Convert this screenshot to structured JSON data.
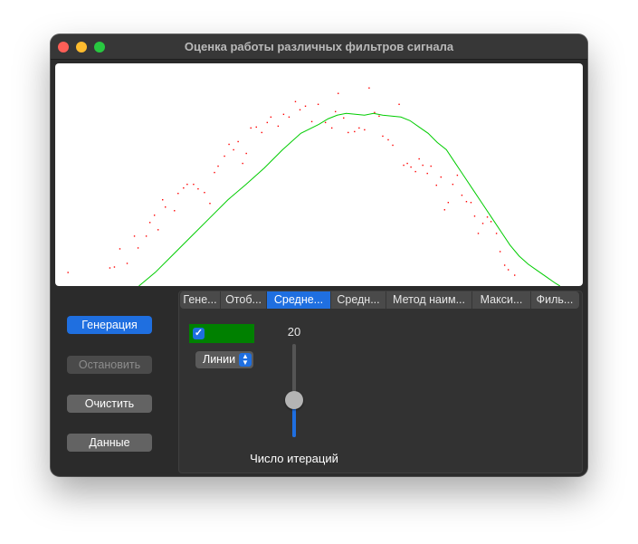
{
  "window": {
    "title": "Оценка работы различных фильтров сигнала"
  },
  "chart_data": {
    "type": "scatter",
    "title": "",
    "xlabel": "",
    "ylabel": "",
    "xlim": [
      0,
      580
    ],
    "ylim": [
      0,
      245
    ],
    "grid": false,
    "series": [
      {
        "kind": "scatter",
        "color": "#ff0000",
        "points": [
          [
            14,
            15
          ],
          [
            60,
            20
          ],
          [
            65,
            21
          ],
          [
            71,
            41
          ],
          [
            79,
            25
          ],
          [
            87,
            55
          ],
          [
            91,
            42
          ],
          [
            100,
            55
          ],
          [
            104,
            70
          ],
          [
            109,
            78
          ],
          [
            113,
            62
          ],
          [
            118,
            95
          ],
          [
            121,
            87
          ],
          [
            131,
            83
          ],
          [
            135,
            102
          ],
          [
            141,
            108
          ],
          [
            145,
            112
          ],
          [
            152,
            112
          ],
          [
            157,
            107
          ],
          [
            164,
            103
          ],
          [
            170,
            91
          ],
          [
            175,
            125
          ],
          [
            179,
            132
          ],
          [
            186,
            143
          ],
          [
            191,
            156
          ],
          [
            196,
            150
          ],
          [
            201,
            159
          ],
          [
            206,
            135
          ],
          [
            210,
            146
          ],
          [
            215,
            174
          ],
          [
            221,
            175
          ],
          [
            227,
            169
          ],
          [
            233,
            180
          ],
          [
            237,
            186
          ],
          [
            245,
            176
          ],
          [
            251,
            189
          ],
          [
            257,
            186
          ],
          [
            264,
            203
          ],
          [
            269,
            194
          ],
          [
            275,
            198
          ],
          [
            282,
            181
          ],
          [
            289,
            200
          ],
          [
            297,
            180
          ],
          [
            304,
            174
          ],
          [
            308,
            192
          ],
          [
            311,
            212
          ],
          [
            317,
            185
          ],
          [
            322,
            169
          ],
          [
            329,
            170
          ],
          [
            334,
            174
          ],
          [
            340,
            172
          ],
          [
            345,
            218
          ],
          [
            351,
            191
          ],
          [
            356,
            187
          ],
          [
            360,
            165
          ],
          [
            366,
            161
          ],
          [
            371,
            155
          ],
          [
            378,
            200
          ],
          [
            383,
            133
          ],
          [
            387,
            135
          ],
          [
            391,
            131
          ],
          [
            396,
            126
          ],
          [
            400,
            140
          ],
          [
            404,
            133
          ],
          [
            409,
            124
          ],
          [
            413,
            132
          ],
          [
            419,
            111
          ],
          [
            424,
            120
          ],
          [
            428,
            84
          ],
          [
            432,
            92
          ],
          [
            437,
            112
          ],
          [
            442,
            122
          ],
          [
            447,
            100
          ],
          [
            452,
            93
          ],
          [
            457,
            92
          ],
          [
            461,
            77
          ],
          [
            465,
            58
          ],
          [
            470,
            69
          ],
          [
            475,
            76
          ],
          [
            479,
            71
          ],
          [
            485,
            58
          ],
          [
            489,
            38
          ],
          [
            494,
            23
          ],
          [
            498,
            18
          ],
          [
            505,
            12
          ]
        ]
      },
      {
        "kind": "line",
        "color": "#00cc00",
        "points": [
          [
            92,
            0
          ],
          [
            110,
            15
          ],
          [
            130,
            35
          ],
          [
            150,
            55
          ],
          [
            170,
            75
          ],
          [
            190,
            95
          ],
          [
            210,
            112
          ],
          [
            230,
            130
          ],
          [
            250,
            150
          ],
          [
            270,
            168
          ],
          [
            290,
            178
          ],
          [
            300,
            184
          ],
          [
            310,
            188
          ],
          [
            320,
            190
          ],
          [
            330,
            189
          ],
          [
            340,
            188
          ],
          [
            350,
            190
          ],
          [
            360,
            188
          ],
          [
            370,
            187
          ],
          [
            380,
            186
          ],
          [
            390,
            182
          ],
          [
            400,
            175
          ],
          [
            410,
            168
          ],
          [
            420,
            158
          ],
          [
            430,
            150
          ],
          [
            440,
            135
          ],
          [
            450,
            120
          ],
          [
            460,
            105
          ],
          [
            470,
            90
          ],
          [
            480,
            75
          ],
          [
            490,
            60
          ],
          [
            500,
            45
          ],
          [
            510,
            33
          ],
          [
            520,
            24
          ],
          [
            530,
            17
          ],
          [
            540,
            10
          ],
          [
            550,
            3
          ],
          [
            555,
            0
          ]
        ]
      }
    ]
  },
  "buttons": {
    "generate": "Генерация",
    "stop": "Остановить",
    "clear": "Очистить",
    "data": "Данные"
  },
  "tabs": [
    {
      "label": "Гене..."
    },
    {
      "label": "Отоб..."
    },
    {
      "label": "Средне..."
    },
    {
      "label": "Средн..."
    },
    {
      "label": "Метод наим..."
    },
    {
      "label": "Макси..."
    },
    {
      "label": "Филь..."
    }
  ],
  "active_tab_index": 2,
  "filter_panel": {
    "enabled": true,
    "color": "#008000",
    "display_mode": "Линии",
    "iterations_label": "Число итераций",
    "iterations_value": "20",
    "slider_fraction": 0.4
  }
}
